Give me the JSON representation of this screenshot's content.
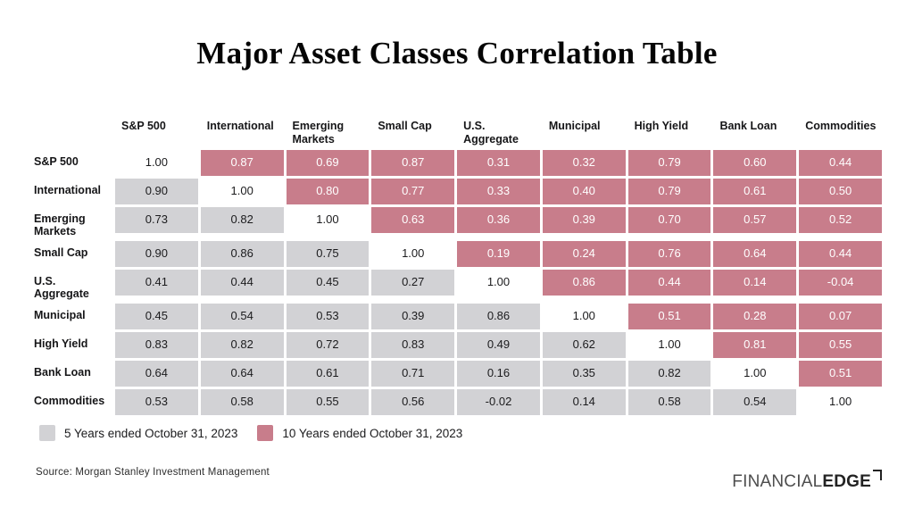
{
  "title": "Major Asset Classes Correlation Table",
  "chart_data": {
    "type": "heatmap",
    "title": "Major Asset Classes Correlation Table",
    "categories": [
      "S&P 500",
      "International",
      "Emerging Markets",
      "Small Cap",
      "U.S. Aggregate",
      "Municipal",
      "High Yield",
      "Bank Loan",
      "Commodities"
    ],
    "matrix": [
      [
        1.0,
        0.87,
        0.69,
        0.87,
        0.31,
        0.32,
        0.79,
        0.6,
        0.44
      ],
      [
        0.9,
        1.0,
        0.8,
        0.77,
        0.33,
        0.4,
        0.79,
        0.61,
        0.5
      ],
      [
        0.73,
        0.82,
        1.0,
        0.63,
        0.36,
        0.39,
        0.7,
        0.57,
        0.52
      ],
      [
        0.9,
        0.86,
        0.75,
        1.0,
        0.19,
        0.24,
        0.76,
        0.64,
        0.44
      ],
      [
        0.41,
        0.44,
        0.45,
        0.27,
        1.0,
        0.86,
        0.44,
        0.14,
        -0.04
      ],
      [
        0.45,
        0.54,
        0.53,
        0.39,
        0.86,
        1.0,
        0.51,
        0.28,
        0.07
      ],
      [
        0.83,
        0.82,
        0.72,
        0.83,
        0.49,
        0.62,
        1.0,
        0.81,
        0.55
      ],
      [
        0.64,
        0.64,
        0.61,
        0.71,
        0.16,
        0.35,
        0.82,
        1.0,
        0.51
      ],
      [
        0.53,
        0.58,
        0.55,
        0.56,
        -0.02,
        0.14,
        0.58,
        0.54,
        1.0
      ]
    ],
    "lower_triangle_series": "5 Years ended October 31, 2023",
    "upper_triangle_series": "10 Years ended October 31, 2023",
    "diagonal_value": 1.0,
    "legend_position": "bottom-left",
    "colors": {
      "lower_triangle": "#d2d2d5",
      "upper_triangle": "#c87d8b",
      "diagonal": "#ffffff"
    }
  },
  "legend": [
    {
      "label": "5 Years ended October 31, 2023",
      "color": "#d2d2d5"
    },
    {
      "label": "10 Years ended October 31, 2023",
      "color": "#c87d8b"
    }
  ],
  "source": "Source: Morgan Stanley Investment Management",
  "logo": {
    "part1": "FINANCIAL",
    "part2": "EDGE"
  }
}
